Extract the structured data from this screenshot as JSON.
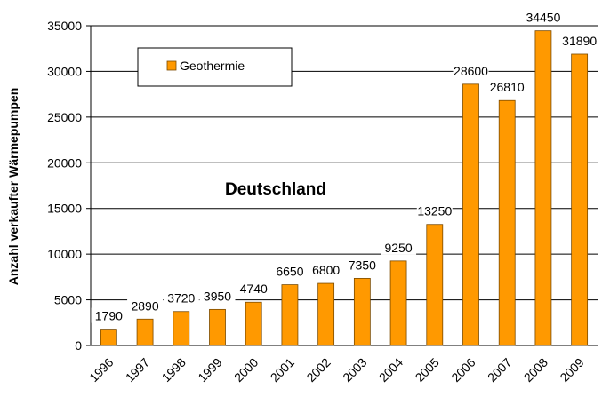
{
  "chart_data": {
    "type": "bar",
    "y_axis_label": "Anzahl verkaufter Wärmepumpen",
    "annotation": "Deutschland",
    "categories": [
      "1996",
      "1997",
      "1998",
      "1999",
      "2000",
      "2001",
      "2002",
      "2003",
      "2004",
      "2005",
      "2006",
      "2007",
      "2008",
      "2009"
    ],
    "series": [
      {
        "name": "Geothermie",
        "color": "#ff9900",
        "values": [
          1790,
          2890,
          3720,
          3950,
          4740,
          6650,
          6800,
          7350,
          9250,
          13250,
          28600,
          26810,
          34450,
          31890
        ]
      }
    ],
    "ylim": [
      0,
      35000
    ],
    "yticks": [
      0,
      5000,
      10000,
      15000,
      20000,
      25000,
      30000,
      35000
    ],
    "grid": true,
    "legend": "upper left"
  }
}
